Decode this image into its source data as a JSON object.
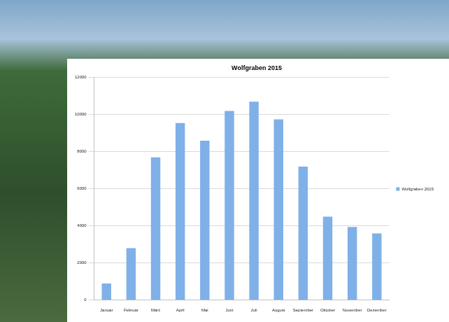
{
  "chart_data": {
    "type": "bar",
    "title": "Wolfgraben 2015",
    "categories": [
      "Januar",
      "Februar",
      "März",
      "April",
      "Mai",
      "Juni",
      "Juli",
      "August",
      "September",
      "Oktober",
      "November",
      "Dezember"
    ],
    "series": [
      {
        "name": "Wolfgraben 2015",
        "color": "#7fb0e8",
        "values": [
          900,
          2800,
          7700,
          9550,
          8600,
          10200,
          10700,
          9750,
          7200,
          4500,
          3950,
          3600
        ]
      }
    ],
    "ylim": [
      0,
      12000
    ],
    "yticks": [
      0,
      2000,
      4000,
      6000,
      8000,
      10000,
      12000
    ],
    "grid": true,
    "legend": "right"
  }
}
